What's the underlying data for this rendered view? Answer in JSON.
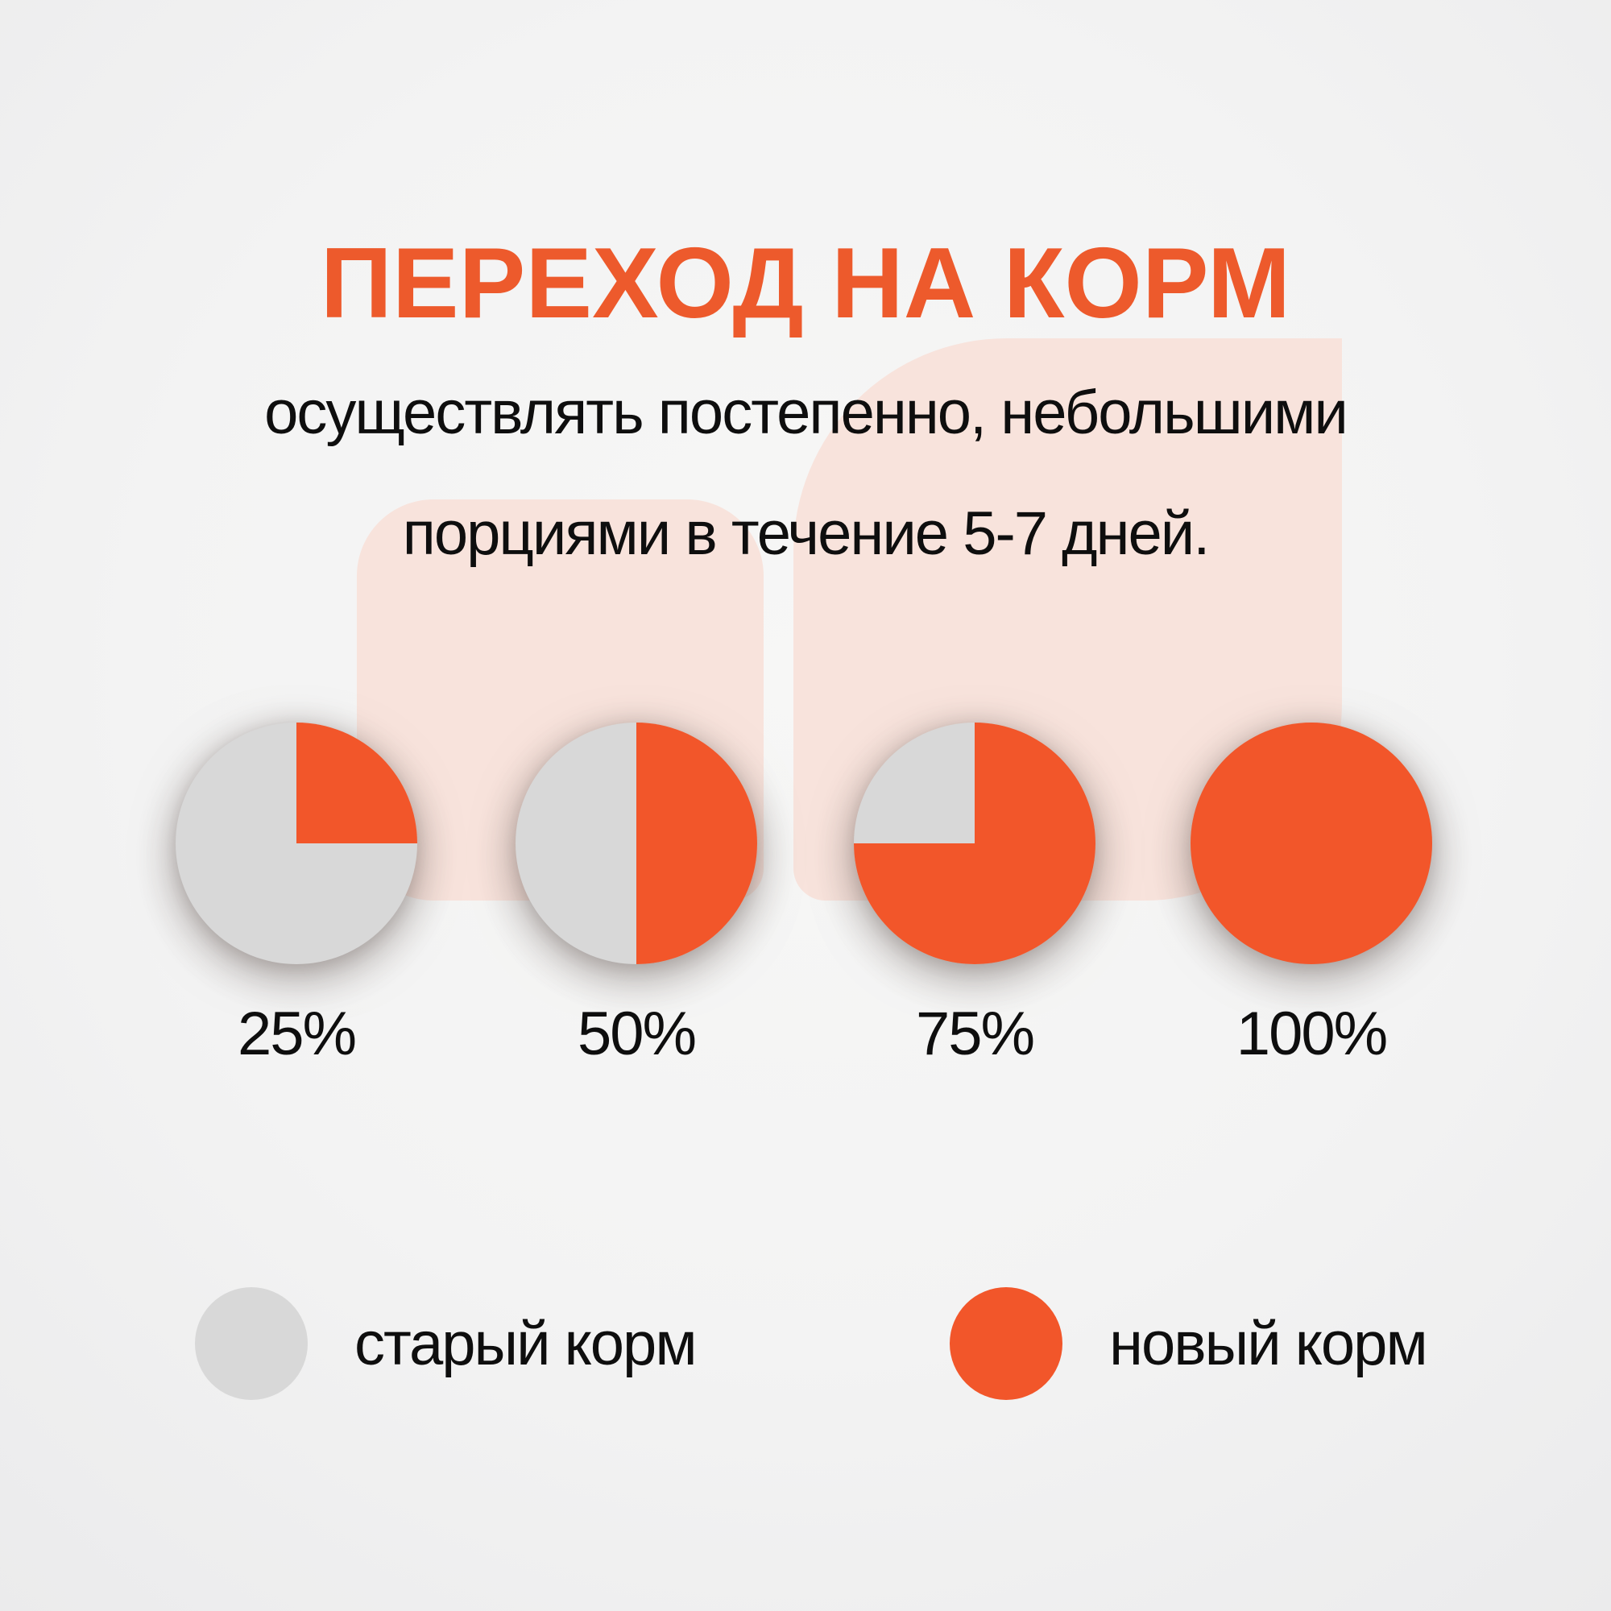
{
  "page": {
    "title": "ПЕРЕХОД НА КОРМ",
    "subtitle_line1": "осуществлять постепенно, небольшими",
    "subtitle_line2": "порциями в течение 5-7 дней."
  },
  "colors": {
    "new_food_orange": "#f2562a",
    "old_food_gray": "#d8d8d8",
    "title_orange": "#ed5a2c",
    "pink_shape": "#f8e3dc",
    "text_black": "#0e0e0e"
  },
  "chart_data": {
    "type": "pie",
    "title": "ПЕРЕХОД НА КОРМ",
    "subtitle": "осуществлять постепенно, небольшими порциями в течение 5-7 дней.",
    "pies": [
      {
        "label": "25%",
        "new_food_percent": 25,
        "old_food_percent": 75
      },
      {
        "label": "50%",
        "new_food_percent": 50,
        "old_food_percent": 50
      },
      {
        "label": "75%",
        "new_food_percent": 75,
        "old_food_percent": 25
      },
      {
        "label": "100%",
        "new_food_percent": 100,
        "old_food_percent": 0
      }
    ],
    "legend": [
      {
        "key": "old_food",
        "label": "старый корм",
        "color": "#d8d8d8"
      },
      {
        "key": "new_food",
        "label": "новый корм",
        "color": "#f2562a"
      }
    ],
    "legend_position": "bottom",
    "wedge_start_angle_deg": -90,
    "wedge_direction": "clockwise"
  }
}
